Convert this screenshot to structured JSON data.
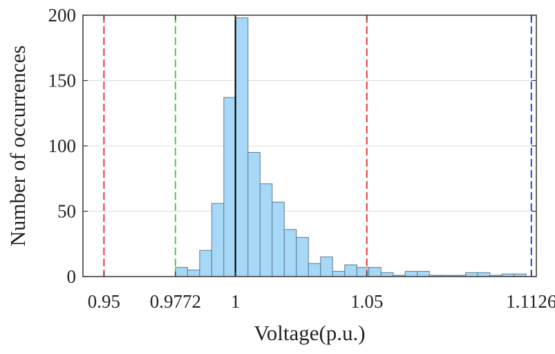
{
  "chart_data": {
    "type": "bar",
    "xlabel": "Voltage(p.u.)",
    "ylabel": "Number of occurrences",
    "xlim": [
      0.942,
      1.1145
    ],
    "ylim": [
      0,
      200
    ],
    "x_ticks": [
      {
        "value": 0.95,
        "label": "0.95"
      },
      {
        "value": 0.9772,
        "label": "0.9772"
      },
      {
        "value": 1.0,
        "label": "1"
      },
      {
        "value": 1.05,
        "label": "1.05"
      },
      {
        "value": 1.1126,
        "label": "1.1126"
      }
    ],
    "y_ticks": [
      {
        "value": 0,
        "label": "0"
      },
      {
        "value": 50,
        "label": "50"
      },
      {
        "value": 100,
        "label": "100"
      },
      {
        "value": 150,
        "label": "150"
      },
      {
        "value": 200,
        "label": "200"
      }
    ],
    "grid": true,
    "bin_start": 0.9772,
    "bin_width": 0.0046,
    "values": [
      7,
      5,
      20,
      56,
      137,
      198,
      95,
      71,
      57,
      36,
      30,
      10,
      15,
      4,
      9,
      7,
      7,
      3,
      1,
      4,
      4,
      1,
      1,
      1,
      3,
      3,
      1,
      2,
      2
    ],
    "bar_color": "#a8d8f8",
    "bar_edge_color": "#5a7a90",
    "reference_lines": [
      {
        "x": 0.95,
        "color": "#e53935",
        "style": "dashed"
      },
      {
        "x": 0.9772,
        "color": "#3ddc3d",
        "style": "dashed"
      },
      {
        "x": 1.0,
        "color": "#000000",
        "style": "solid"
      },
      {
        "x": 1.05,
        "color": "#e53935",
        "style": "dashed"
      },
      {
        "x": 1.1126,
        "color": "#2e3fe0",
        "style": "dashed"
      }
    ]
  }
}
